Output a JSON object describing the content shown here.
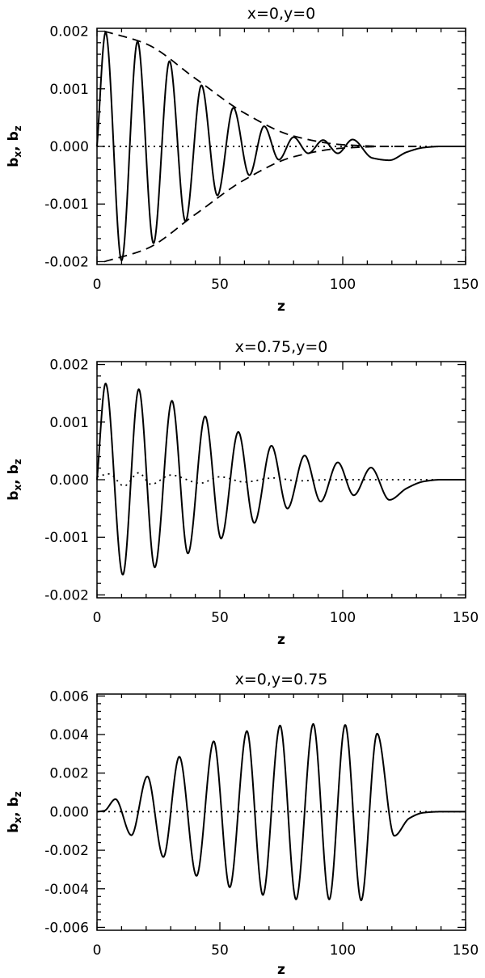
{
  "chart_data": [
    {
      "type": "line",
      "title": "x=0,y=0",
      "xlabel": "z",
      "ylabel": {
        "main_1": "b",
        "sub_1": "x",
        "sep": ", ",
        "main_2": "b",
        "sub_2": "z"
      },
      "xlim": [
        0,
        150
      ],
      "ylim": [
        -0.00205,
        0.00205
      ],
      "xticks": [
        "0",
        "50",
        "100",
        "150"
      ],
      "yticks": [
        "-0.002",
        "-0.001",
        "0.000",
        "0.001",
        "0.002"
      ],
      "ytick_values": [
        -0.002,
        -0.001,
        0.0,
        0.001,
        0.002
      ],
      "series": [
        {
          "style": "solid",
          "x": [
            0,
            3.5,
            10,
            16.5,
            23,
            29.5,
            36,
            42.5,
            49,
            55.5,
            62,
            68,
            74,
            80,
            86,
            92,
            98,
            104,
            112,
            119,
            126,
            133,
            140,
            150
          ],
          "y": [
            0,
            0.00198,
            -0.00198,
            0.00182,
            -0.00168,
            0.00148,
            -0.0013,
            0.00106,
            -0.00085,
            0.00067,
            -0.0005,
            0.00035,
            -0.00023,
            0.00016,
            -0.00012,
            0.00011,
            -0.00012,
            0.00012,
            -0.0002,
            -0.00024,
            -0.0001,
            -2e-05,
            0,
            0
          ]
        },
        {
          "style": "dashed",
          "x": [
            3,
            20,
            40,
            60,
            80,
            100,
            120,
            130
          ],
          "y": [
            0.002,
            0.00178,
            0.00118,
            0.00058,
            0.00018,
            3e-05,
            0.0,
            0.0
          ]
        },
        {
          "style": "dashed",
          "x": [
            3,
            20,
            40,
            60,
            80,
            100,
            120,
            130
          ],
          "y": [
            -0.002,
            -0.00178,
            -0.00118,
            -0.00058,
            -0.00018,
            -3e-05,
            0.0,
            0.0
          ]
        },
        {
          "style": "dotted",
          "x": [
            0,
            150
          ],
          "y": [
            0,
            0
          ]
        }
      ]
    },
    {
      "type": "line",
      "title": "x=0.75,y=0",
      "xlabel": "z",
      "ylabel": {
        "main_1": "b",
        "sub_1": "x",
        "sep": ", ",
        "main_2": "b",
        "sub_2": "z"
      },
      "xlim": [
        0,
        150
      ],
      "ylim": [
        -0.00205,
        0.00205
      ],
      "xticks": [
        "0",
        "50",
        "100",
        "150"
      ],
      "yticks": [
        "-0.002",
        "-0.001",
        "0.000",
        "0.001",
        "0.002"
      ],
      "ytick_values": [
        -0.002,
        -0.001,
        0.0,
        0.001,
        0.002
      ],
      "series": [
        {
          "style": "solid",
          "x": [
            0,
            3.5,
            10.5,
            17,
            23.5,
            30.5,
            37,
            44,
            50.5,
            57.5,
            64,
            71,
            77.5,
            84.5,
            91,
            98,
            104.5,
            111.5,
            119,
            126,
            133,
            140,
            150
          ],
          "y": [
            0,
            0.00167,
            -0.00165,
            0.00157,
            -0.00152,
            0.00137,
            -0.00128,
            0.0011,
            -0.00102,
            0.00083,
            -0.00075,
            0.00059,
            -0.0005,
            0.00042,
            -0.00038,
            0.0003,
            -0.00027,
            0.00021,
            -0.00035,
            -0.00015,
            -3e-05,
            0,
            0
          ]
        },
        {
          "style": "dotted",
          "x": [
            0,
            5,
            11,
            17,
            22,
            30,
            42,
            50,
            60,
            72,
            82,
            95,
            110,
            150
          ],
          "y": [
            5e-05,
            0.0001,
            -0.00011,
            0.00012,
            -8e-05,
            8e-05,
            -6e-05,
            5e-05,
            -4e-05,
            3e-05,
            -2e-05,
            0.0,
            0.0,
            0.0
          ]
        }
      ]
    },
    {
      "type": "line",
      "title": "x=0,y=0.75",
      "xlabel": "z",
      "ylabel": {
        "main_1": "b",
        "sub_1": "x",
        "sep": ", ",
        "main_2": "b",
        "sub_2": "z"
      },
      "xlim": [
        0,
        150
      ],
      "ylim": [
        -0.00615,
        0.0061
      ],
      "xticks": [
        "0",
        "50",
        "100",
        "150"
      ],
      "yticks": [
        "-0.006",
        "-0.004",
        "-0.002",
        "0.000",
        "0.002",
        "0.004",
        "0.006"
      ],
      "ytick_values": [
        -0.006,
        -0.004,
        -0.002,
        0.0,
        0.002,
        0.004,
        0.006
      ],
      "series": [
        {
          "style": "solid",
          "x": [
            0,
            3,
            7.5,
            14,
            20.5,
            27,
            33.5,
            40.5,
            47.5,
            54,
            61,
            67.5,
            74.5,
            81,
            88,
            94.5,
            101,
            107.5,
            114,
            121,
            127,
            133,
            140,
            150
          ],
          "y": [
            0,
            5e-05,
            0.00065,
            -0.00122,
            0.00183,
            -0.00235,
            0.00285,
            -0.00333,
            0.00365,
            -0.00392,
            0.00418,
            -0.00432,
            0.00447,
            -0.00455,
            0.00455,
            -0.00455,
            0.0045,
            -0.0046,
            0.00405,
            -0.00125,
            -0.00035,
            -5e-05,
            0,
            0
          ]
        },
        {
          "style": "dotted",
          "x": [
            0,
            150
          ],
          "y": [
            0,
            0
          ]
        }
      ]
    }
  ]
}
